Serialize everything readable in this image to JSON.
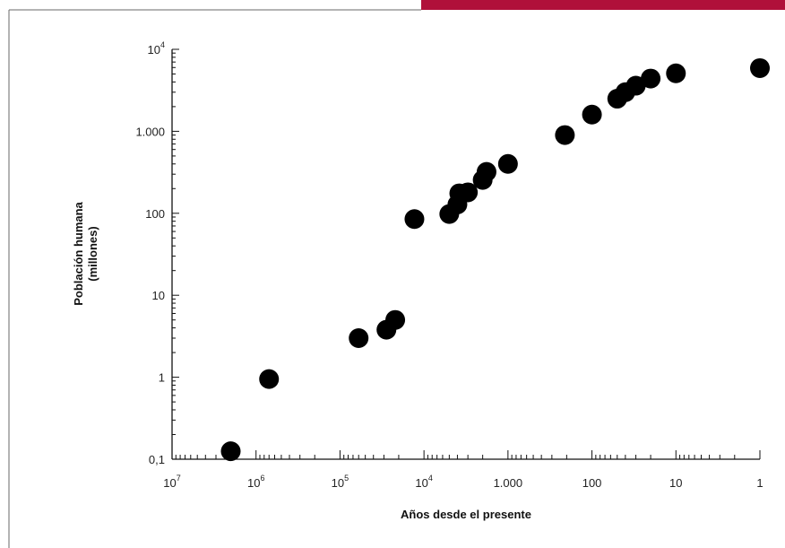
{
  "colors": {
    "accent": "#b0103a",
    "marker": "#000000",
    "frame": "#6a6a6a"
  },
  "chart_data": {
    "type": "scatter",
    "title": "",
    "xlabel": "Años desde el presente",
    "ylabel_lines": [
      "Población humana",
      "(millones)"
    ],
    "x_scale": "log",
    "x_direction": "reversed",
    "y_scale": "log",
    "xlim": [
      10000000,
      1
    ],
    "ylim": [
      0.1,
      10000
    ],
    "x_ticks": [
      {
        "base": "10",
        "exp": "7",
        "value": 10000000
      },
      {
        "base": "10",
        "exp": "6",
        "value": 1000000
      },
      {
        "base": "10",
        "exp": "5",
        "value": 100000
      },
      {
        "base": "10",
        "exp": "4",
        "value": 10000
      },
      {
        "text": "1.000",
        "value": 1000
      },
      {
        "text": "100",
        "value": 100
      },
      {
        "text": "10",
        "value": 10
      },
      {
        "text": "1",
        "value": 1
      }
    ],
    "y_ticks": [
      {
        "text": "0,1",
        "value": 0.1
      },
      {
        "text": "1",
        "value": 1
      },
      {
        "text": "10",
        "value": 10
      },
      {
        "text": "100",
        "value": 100
      },
      {
        "text": "1.000",
        "value": 1000
      },
      {
        "base": "10",
        "exp": "4",
        "value": 10000
      }
    ],
    "grid": false,
    "legend": "none",
    "points": [
      {
        "x": 2000000,
        "y": 0.125
      },
      {
        "x": 700000,
        "y": 0.95
      },
      {
        "x": 60000,
        "y": 3.0
      },
      {
        "x": 28000,
        "y": 3.8
      },
      {
        "x": 22000,
        "y": 5.0
      },
      {
        "x": 13000,
        "y": 85
      },
      {
        "x": 5000,
        "y": 98
      },
      {
        "x": 4000,
        "y": 128
      },
      {
        "x": 3800,
        "y": 175
      },
      {
        "x": 3000,
        "y": 180
      },
      {
        "x": 2000,
        "y": 255
      },
      {
        "x": 1800,
        "y": 320
      },
      {
        "x": 1000,
        "y": 400
      },
      {
        "x": 210,
        "y": 900
      },
      {
        "x": 100,
        "y": 1600
      },
      {
        "x": 50,
        "y": 2500
      },
      {
        "x": 40,
        "y": 3000
      },
      {
        "x": 30,
        "y": 3600
      },
      {
        "x": 20,
        "y": 4400
      },
      {
        "x": 10,
        "y": 5100
      },
      {
        "x": 1,
        "y": 5900
      }
    ]
  }
}
